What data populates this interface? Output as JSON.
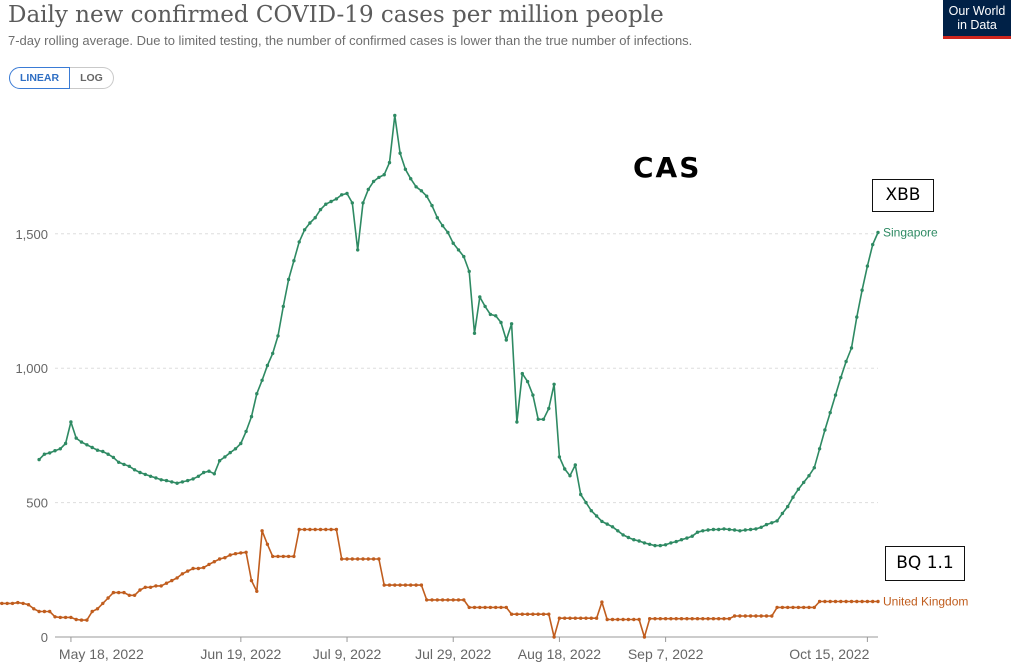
{
  "header": {
    "title": "Daily new confirmed COVID-19 cases per million people",
    "subtitle": "7-day rolling average. Due to limited testing, the number of confirmed cases is lower than the true number of infections.",
    "logo_line1": "Our World",
    "logo_line2": "in Data"
  },
  "scale_toggle": {
    "linear_label": "LINEAR",
    "log_label": "LOG",
    "selected": "LINEAR"
  },
  "annotations": {
    "cas": "CAS",
    "xbb": "XBB",
    "bq": "BQ 1.1"
  },
  "colors": {
    "singapore": "#2e8a63",
    "uk": "#c05d1e",
    "grid": "#dddddd",
    "axis_text": "#666666"
  },
  "chart_data": {
    "type": "line",
    "title": "Daily new confirmed COVID-19 cases per million people",
    "subtitle": "7-day rolling average. Due to limited testing, the number of confirmed cases is lower than the true number of infections.",
    "x_start": "2022-05-15",
    "x_end": "2022-10-17",
    "x_ticks": [
      "May 18, 2022",
      "Jun 19, 2022",
      "Jul 9, 2022",
      "Jul 29, 2022",
      "Aug 18, 2022",
      "Sep 7, 2022",
      "Oct 15, 2022"
    ],
    "x_tick_dates": [
      "2022-05-18",
      "2022-06-19",
      "2022-07-09",
      "2022-07-29",
      "2022-08-18",
      "2022-09-07",
      "2022-10-15"
    ],
    "y_ticks": [
      "0",
      "500",
      "1,000",
      "1,500"
    ],
    "y_tick_values": [
      0,
      500,
      1000,
      1500
    ],
    "ylim": [
      0,
      2000
    ],
    "grid": "horizontal dashed",
    "legend": "end-of-line labels",
    "series": [
      {
        "name": "Singapore",
        "color": "#2e8a63",
        "values": [
          660,
          680,
          685,
          693,
          700,
          720,
          800,
          740,
          725,
          715,
          705,
          695,
          690,
          680,
          668,
          650,
          642,
          635,
          622,
          612,
          605,
          598,
          592,
          585,
          582,
          577,
          572,
          577,
          582,
          588,
          598,
          612,
          617,
          607,
          656,
          670,
          686,
          700,
          720,
          765,
          820,
          905,
          955,
          1010,
          1055,
          1120,
          1230,
          1330,
          1400,
          1470,
          1515,
          1540,
          1560,
          1590,
          1610,
          1620,
          1630,
          1645,
          1650,
          1615,
          1440,
          1615,
          1665,
          1695,
          1710,
          1720,
          1765,
          1940,
          1800,
          1740,
          1705,
          1675,
          1660,
          1640,
          1605,
          1560,
          1530,
          1505,
          1465,
          1440,
          1415,
          1360,
          1130,
          1265,
          1230,
          1200,
          1195,
          1170,
          1105,
          1165,
          800,
          980,
          950,
          900,
          810,
          810,
          850,
          940,
          670,
          625,
          600,
          640,
          530,
          500,
          470,
          450,
          430,
          420,
          410,
          395,
          380,
          370,
          362,
          357,
          350,
          345,
          340,
          340,
          343,
          350,
          355,
          362,
          368,
          375,
          390,
          395,
          398,
          400,
          400,
          402,
          400,
          398,
          395,
          398,
          400,
          402,
          408,
          418,
          425,
          432,
          460,
          485,
          520,
          550,
          575,
          600,
          630,
          700,
          770,
          835,
          900,
          965,
          1025,
          1075,
          1190,
          1290,
          1380,
          1460,
          1505
        ]
      },
      {
        "name": "United Kingdom",
        "color": "#c05d1e",
        "values": [
          130,
          126,
          125,
          125,
          125,
          128,
          125,
          120,
          105,
          95,
          95,
          95,
          75,
          73,
          73,
          73,
          65,
          63,
          63,
          95,
          105,
          125,
          145,
          165,
          165,
          165,
          155,
          155,
          175,
          185,
          185,
          190,
          190,
          200,
          210,
          220,
          235,
          245,
          255,
          255,
          258,
          270,
          280,
          290,
          295,
          305,
          310,
          313,
          315,
          210,
          170,
          395,
          345,
          300,
          300,
          300,
          300,
          300,
          400,
          400,
          400,
          400,
          400,
          400,
          400,
          400,
          290,
          290,
          290,
          290,
          290,
          290,
          290,
          290,
          193,
          193,
          193,
          193,
          193,
          193,
          193,
          193,
          138,
          138,
          138,
          138,
          138,
          138,
          138,
          138,
          110,
          110,
          110,
          110,
          110,
          110,
          110,
          110,
          85,
          85,
          85,
          85,
          85,
          85,
          85,
          85,
          0,
          70,
          70,
          70,
          70,
          70,
          70,
          70,
          70,
          130,
          65,
          65,
          65,
          65,
          65,
          65,
          65,
          0,
          68,
          68,
          68,
          68,
          68,
          68,
          68,
          68,
          68,
          68,
          68,
          68,
          68,
          68,
          68,
          68,
          78,
          78,
          78,
          78,
          78,
          78,
          78,
          78,
          110,
          110,
          110,
          110,
          110,
          110,
          110,
          110,
          132,
          132,
          132,
          132,
          132,
          132,
          132,
          132,
          132,
          132,
          132,
          132
        ]
      }
    ]
  }
}
